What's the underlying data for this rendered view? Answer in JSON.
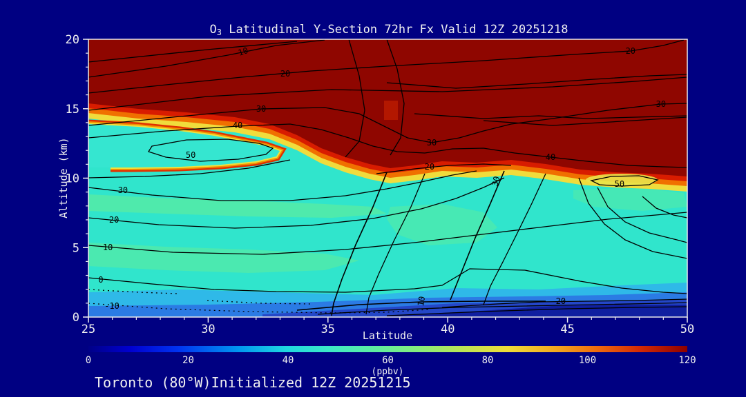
{
  "title": {
    "o": "O",
    "sub": "3",
    "rest": " Latitudinal Y-Section 72hr  Fx Valid 12Z 20251218"
  },
  "footer": {
    "text": "Toronto (80°W)Initialized 12Z 20251215"
  },
  "axes": {
    "ylabel": "Altitude (km)",
    "xlabel": "Latitude"
  },
  "colorbar_unit": "(ppbv)",
  "chart_data": {
    "type": "heatmap",
    "subtype": "filled-contour latitude-height cross section with overlaid line contours",
    "fill_field": "ozone mixing ratio",
    "fill_units": "ppbv",
    "fill_range": [
      0,
      120
    ],
    "x_axis": {
      "label": "Latitude",
      "range": [
        25,
        50
      ],
      "major_ticks": [
        25,
        30,
        35,
        40,
        45,
        50
      ],
      "minor_tick_step": 1
    },
    "y_axis": {
      "label": "Altitude (km)",
      "range": [
        0,
        20
      ],
      "major_ticks": [
        0,
        5,
        10,
        15,
        20
      ],
      "minor_tick_step": 1
    },
    "colorbar": {
      "ticks": [
        0,
        20,
        40,
        60,
        80,
        100,
        120
      ],
      "unit": "(ppbv)",
      "orientation": "horizontal",
      "gradient": [
        "#000087",
        "#0000d0",
        "#0033f0",
        "#0096f0",
        "#1fd8e0",
        "#3ce8c8",
        "#5feda0",
        "#86ec7c",
        "#b8e556",
        "#efdc38",
        "#f2a81f",
        "#ee6a0e",
        "#d42a05",
        "#8c0000"
      ]
    },
    "key_colors": {
      "stratosphere_max": "#8f0600",
      "transition": [
        "#d81c00",
        "#f07000",
        "#f0dc3c"
      ],
      "troposphere": "#30e5cc",
      "seafoam_patch": "#57eba4",
      "boundary_layer_blues": [
        "#2fb9e8",
        "#2b7be4",
        "#2447c8",
        "#101fa0"
      ],
      "background": "#000082",
      "text": "#f0f0f0"
    },
    "features": {
      "stratospheric_high_ozone": "fill > 120 ppbv (dark red) above ~15 km at lat 25 falling to ~10 km by lat 40-50",
      "low_ozone_pocket": "cyan pocket lat 25-33 at 11-14 km enclosed by yellow/orange/red rim",
      "surface_low": "deep blue < 20 ppbv band near surface, darkest lat 40-50"
    },
    "overlay_contours": {
      "values_labeled": [
        -10,
        0,
        10,
        20,
        30,
        40,
        50
      ],
      "negative_style": "dotted",
      "labels": [
        {
          "value": "10",
          "lat": 31.46,
          "alt": 19.11,
          "rot": -18
        },
        {
          "value": "20",
          "lat": 33.22,
          "alt": 17.52,
          "rot": 0
        },
        {
          "value": "30",
          "lat": 32.21,
          "alt": 14.99,
          "rot": 0
        },
        {
          "value": "40",
          "lat": 31.23,
          "alt": 13.8,
          "rot": 0
        },
        {
          "value": "50",
          "lat": 29.27,
          "alt": 11.66,
          "rot": 0
        },
        {
          "value": "20",
          "lat": 47.63,
          "alt": 19.16,
          "rot": 0
        },
        {
          "value": "30",
          "lat": 48.9,
          "alt": 15.33,
          "rot": 0
        },
        {
          "value": "30",
          "lat": 39.33,
          "alt": 12.56,
          "rot": 0
        },
        {
          "value": "20",
          "lat": 39.24,
          "alt": 10.82,
          "rot": 0
        },
        {
          "value": "40",
          "lat": 44.29,
          "alt": 11.51,
          "rot": 0
        },
        {
          "value": "50",
          "lat": 47.17,
          "alt": 9.58,
          "rot": 0
        },
        {
          "value": "30",
          "lat": 42.01,
          "alt": 9.78,
          "rot": -75
        },
        {
          "value": "30",
          "lat": 26.44,
          "alt": 9.13,
          "rot": 0
        },
        {
          "value": "20",
          "lat": 26.07,
          "alt": 7.0,
          "rot": 0
        },
        {
          "value": "10",
          "lat": 25.81,
          "alt": 5.01,
          "rot": 0
        },
        {
          "value": "0",
          "lat": 25.52,
          "alt": 2.68,
          "rot": 0
        },
        {
          "value": "-10",
          "lat": 25.98,
          "alt": 0.79,
          "rot": 0
        },
        {
          "value": "10",
          "lat": 38.9,
          "alt": 1.14,
          "rot": -80
        },
        {
          "value": "20",
          "lat": 44.72,
          "alt": 1.14,
          "rot": 0
        }
      ]
    }
  }
}
